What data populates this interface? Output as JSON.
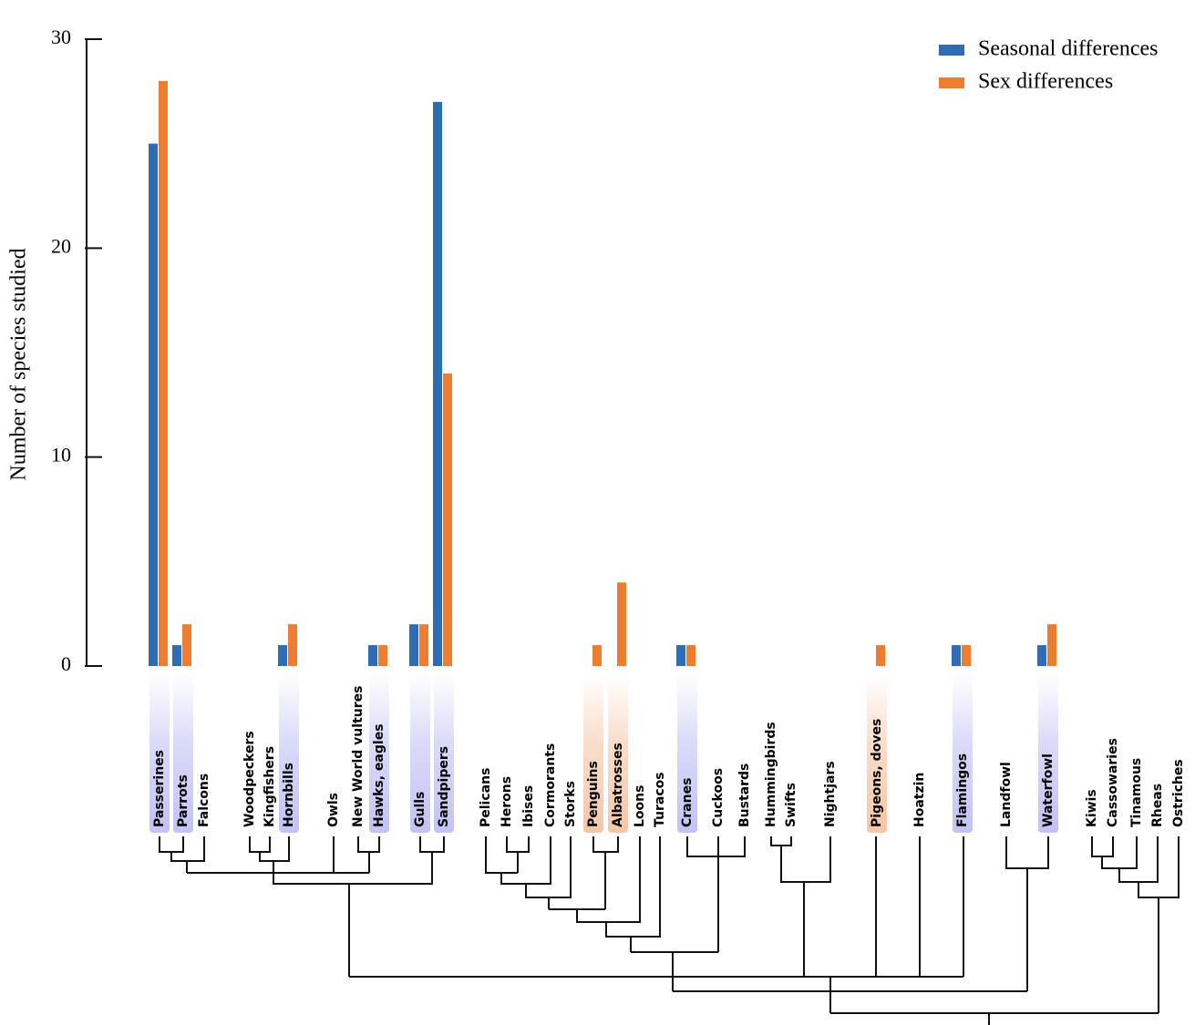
{
  "chart_data": {
    "type": "bar",
    "y_label": "Number of species studied",
    "categories": [
      "Passerines",
      "Parrots",
      "Falcons",
      "Woodpeckers",
      "Kingfishers",
      "Hornbills",
      "Owls",
      "New World vultures",
      "Hawks, eagles",
      "Gulls",
      "Sandpipers",
      "Pelicans",
      "Herons",
      "Ibises",
      "Cormorants",
      "Storks",
      "Penguins",
      "Albatrosses",
      "Loons",
      "Turacos",
      "Cranes",
      "Cuckoos",
      "Bustards",
      "Hummingbirds",
      "Swifts",
      "Nightjars",
      "Pigeons, doves",
      "Hoatzin",
      "Flamingos",
      "Landfowl",
      "Waterfowl",
      "Kiwis",
      "Cassowaries",
      "Tinamous",
      "Rheas",
      "Ostriches"
    ],
    "series": [
      {
        "name": "Seasonal differences",
        "color": "#2e6db4",
        "values": [
          25,
          1,
          null,
          null,
          null,
          1,
          null,
          null,
          1,
          2,
          27,
          null,
          null,
          null,
          null,
          null,
          null,
          null,
          null,
          null,
          1,
          null,
          null,
          null,
          null,
          null,
          null,
          null,
          1,
          null,
          1,
          null,
          null,
          null,
          null,
          null
        ]
      },
      {
        "name": "Sex differences",
        "color": "#ed7d31",
        "values": [
          28,
          2,
          null,
          null,
          null,
          2,
          null,
          null,
          1,
          2,
          14,
          null,
          null,
          null,
          null,
          null,
          1,
          4,
          null,
          null,
          1,
          null,
          null,
          null,
          null,
          null,
          1,
          null,
          1,
          null,
          2,
          null,
          null,
          null,
          null,
          null
        ]
      }
    ],
    "ylim": [
      0,
      30
    ],
    "yticks": [
      0,
      10,
      20,
      30
    ],
    "legend": "top-right"
  }
}
